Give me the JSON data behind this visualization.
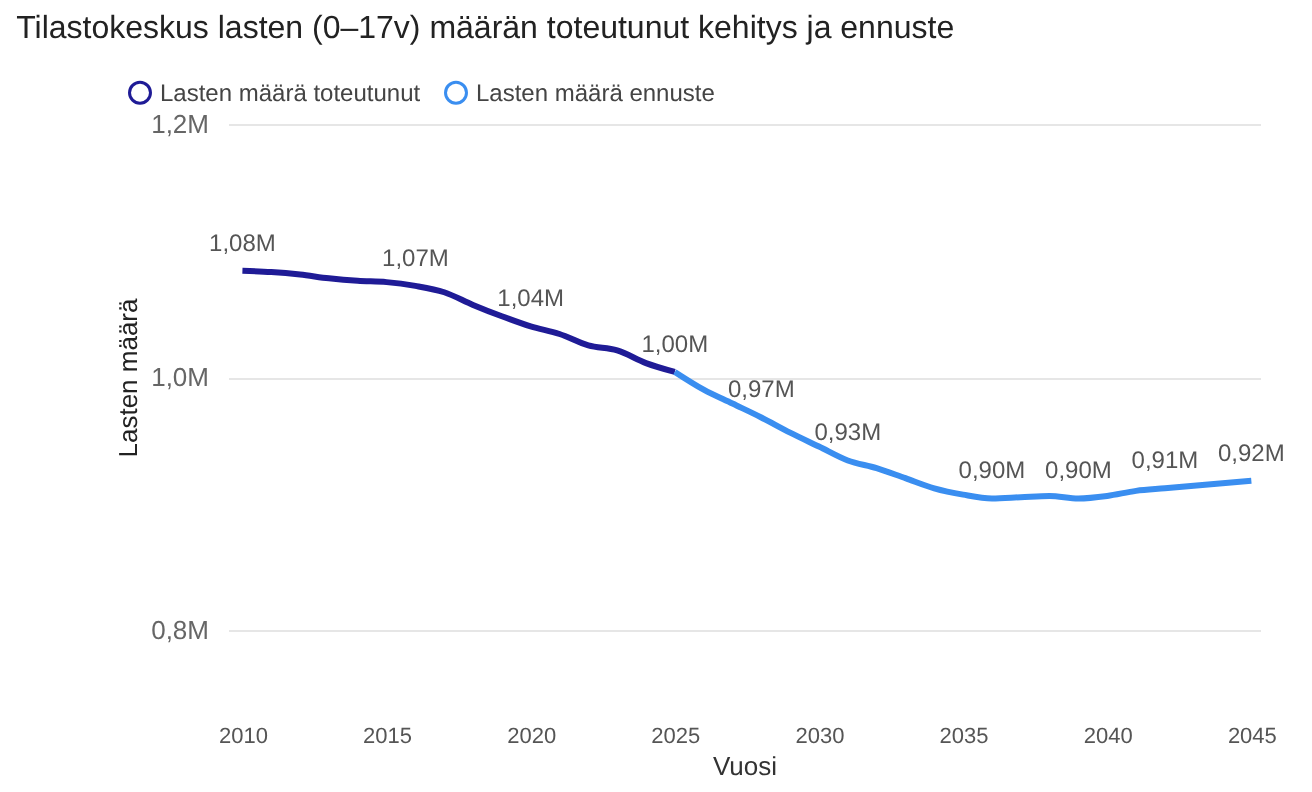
{
  "chart_data": {
    "type": "line",
    "title": "Tilastokeskus lasten (0–17v) määrän toteutunut kehitys ja ennuste",
    "xlabel": "Vuosi",
    "ylabel": "Lasten määrä",
    "xlim": [
      2009.5,
      2045.3
    ],
    "xticks": [
      2010,
      2015,
      2020,
      2025,
      2030,
      2035,
      2040,
      2045
    ],
    "ylim": [
      0.8,
      1.2
    ],
    "yticks": [
      {
        "value": 0.8,
        "label": "0,8M"
      },
      {
        "value": 1.0,
        "label": "1,0M"
      },
      {
        "value": 1.2,
        "label": "1,2M"
      }
    ],
    "grid": "y",
    "legend": "top left",
    "marker": "none",
    "line_style": "solid",
    "series": [
      {
        "name": "Lasten määrä toteutunut",
        "color": "#1f1b96",
        "x": [
          2010,
          2011,
          2012,
          2013,
          2014,
          2015,
          2016,
          2017,
          2018,
          2019,
          2020,
          2021,
          2022,
          2023,
          2024,
          2025
        ],
        "values": [
          1.084,
          1.083,
          1.081,
          1.078,
          1.076,
          1.075,
          1.072,
          1.067,
          1.057,
          1.048,
          1.04,
          1.034,
          1.025,
          1.021,
          1.011,
          1.004
        ],
        "value_labels": [
          "1,08M",
          null,
          null,
          null,
          null,
          null,
          "1,07M",
          null,
          null,
          null,
          "1,04M",
          null,
          null,
          null,
          null,
          "1,00M"
        ]
      },
      {
        "name": "Lasten määrä ennuste",
        "color": "#3a8ef0",
        "x": [
          2025,
          2026,
          2027,
          2028,
          2029,
          2030,
          2031,
          2032,
          2033,
          2034,
          2035,
          2036,
          2037,
          2038,
          2039,
          2040,
          2041,
          2042,
          2043,
          2044,
          2045
        ],
        "values": [
          1.004,
          0.99,
          0.979,
          0.968,
          0.956,
          0.945,
          0.934,
          0.928,
          0.92,
          0.912,
          0.907,
          0.904,
          0.905,
          0.906,
          0.904,
          0.906,
          0.91,
          0.912,
          0.914,
          0.916,
          0.918
        ],
        "value_labels": [
          null,
          null,
          null,
          "0,97M",
          null,
          null,
          "0,93M",
          null,
          null,
          null,
          null,
          "0,90M",
          null,
          null,
          "0,90M",
          null,
          null,
          "0,91M",
          null,
          null,
          "0,92M"
        ]
      }
    ]
  }
}
